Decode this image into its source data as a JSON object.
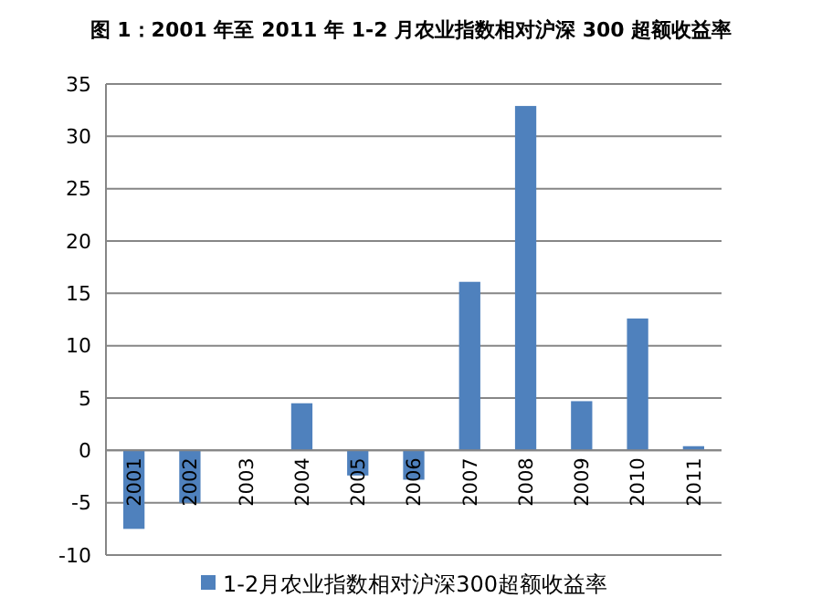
{
  "chart_data": {
    "type": "bar",
    "title": "图 1：2001 年至 2011 年 1-2 月农业指数相对沪深 300 超额收益率",
    "categories": [
      "2001",
      "2002",
      "2003",
      "2004",
      "2005",
      "2006",
      "2007",
      "2008",
      "2009",
      "2010",
      "2011"
    ],
    "series": [
      {
        "name": "1-2月农业指数相对沪深300超额收益率",
        "color": "#4f81bd",
        "values": [
          -7.5,
          -5,
          0,
          4.5,
          -2.4,
          -2.8,
          16.1,
          32.9,
          4.7,
          12.6,
          0.4
        ]
      }
    ],
    "ylim": [
      -10,
      35
    ],
    "yticks": [
      -10,
      -5,
      0,
      5,
      10,
      15,
      20,
      25,
      30,
      35
    ],
    "grid": "y",
    "legend": "bottom"
  }
}
